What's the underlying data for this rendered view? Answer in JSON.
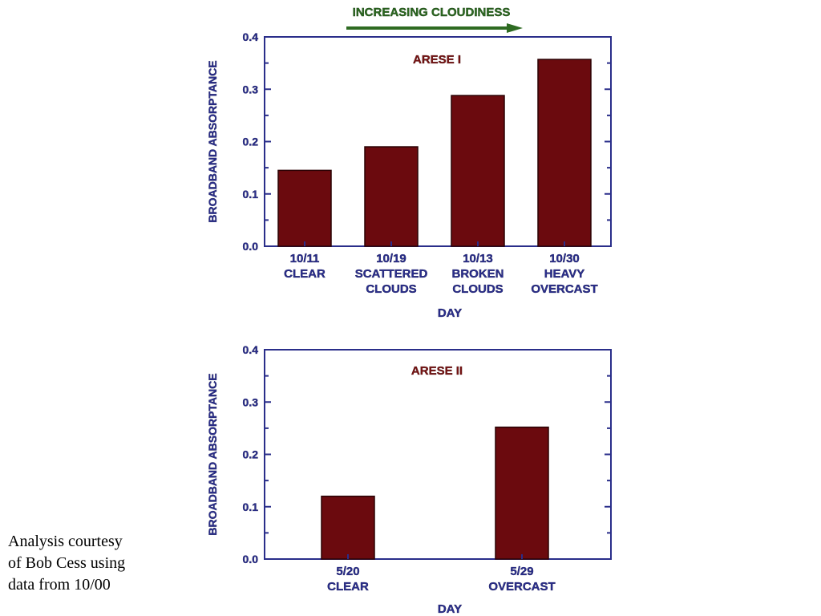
{
  "colors": {
    "bar": "#6b0a0e",
    "bar_edge": "#2a0204",
    "axis": "#2a2e8a",
    "text": "#2b2f8f",
    "title": "#7a1414",
    "arrow": "#2e6b22"
  },
  "banner": {
    "label": "INCREASING CLOUDINESS",
    "icon": "right-arrow-icon"
  },
  "chart_data": [
    {
      "type": "bar",
      "title": "ARESE I",
      "xlabel": "DAY",
      "ylabel": "BROADBAND ABSORPTANCE",
      "ylim": [
        0,
        0.4
      ],
      "yticks": [
        "0.0",
        "0.1",
        "0.2",
        "0.3",
        "0.4"
      ],
      "categories": [
        [
          "10/11",
          "CLEAR"
        ],
        [
          "10/19",
          "SCATTERED",
          "CLOUDS"
        ],
        [
          "10/13",
          "BROKEN",
          "CLOUDS"
        ],
        [
          "10/30",
          "HEAVY",
          "OVERCAST"
        ]
      ],
      "values": [
        0.145,
        0.19,
        0.288,
        0.357
      ],
      "grid": false
    },
    {
      "type": "bar",
      "title": "ARESE II",
      "xlabel": "DAY",
      "ylabel": "BROADBAND ABSORPTANCE",
      "ylim": [
        0,
        0.4
      ],
      "yticks": [
        "0.0",
        "0.1",
        "0.2",
        "0.3",
        "0.4"
      ],
      "categories": [
        [
          "5/20",
          "CLEAR"
        ],
        [
          "5/29",
          "OVERCAST"
        ]
      ],
      "values": [
        0.12,
        0.252
      ],
      "grid": false
    }
  ],
  "caption": {
    "lines": [
      "Analysis courtesy",
      "of Bob Cess using",
      "data from 10/00"
    ]
  }
}
